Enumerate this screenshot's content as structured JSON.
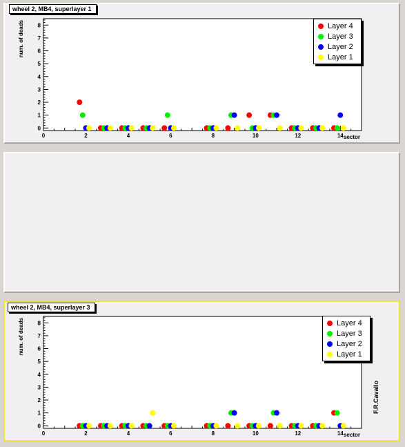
{
  "author": "F.R.Cavallo",
  "colors": {
    "Layer 4": "#ff0000",
    "Layer 3": "#00ee00",
    "Layer 2": "#0000ff",
    "Layer 1": "#ffff00"
  },
  "chart_data": [
    {
      "type": "scatter",
      "title": "wheel 2, MB4, superlayer 1",
      "xlabel": "sector",
      "ylabel": "num. of deads",
      "xlim": [
        0,
        15
      ],
      "ylim": [
        -0.2,
        8.5
      ],
      "xticks": [
        0,
        2,
        4,
        6,
        8,
        10,
        12,
        14
      ],
      "yticks": [
        0,
        1,
        2,
        3,
        4,
        5,
        6,
        7,
        8
      ],
      "legend_position": "top-right",
      "series": [
        {
          "name": "Layer 4",
          "x": [
            1,
            2,
            3,
            4,
            5,
            7,
            8,
            9,
            10,
            11,
            12,
            13
          ],
          "y": [
            2,
            0,
            0,
            0,
            0,
            0,
            0,
            1,
            1,
            0,
            0,
            0
          ]
        },
        {
          "name": "Layer 3",
          "x": [
            1,
            2,
            3,
            4,
            5,
            7,
            8,
            9,
            10,
            11,
            12,
            13
          ],
          "y": [
            1,
            0,
            0,
            0,
            1,
            0,
            1,
            0,
            1,
            0,
            0,
            0
          ]
        },
        {
          "name": "Layer 2",
          "x": [
            1,
            2,
            3,
            4,
            5,
            7,
            8,
            9,
            10,
            11,
            12,
            13
          ],
          "y": [
            0,
            0,
            0,
            0,
            0,
            0,
            1,
            0,
            1,
            0,
            0,
            1
          ]
        },
        {
          "name": "Layer 1",
          "x": [
            1,
            2,
            3,
            4,
            5,
            7,
            8,
            9,
            10,
            11,
            12,
            13
          ],
          "y": [
            0,
            0,
            0,
            0,
            0,
            0,
            0,
            0,
            0,
            0,
            0,
            0
          ]
        }
      ]
    },
    {
      "type": "scatter",
      "title": "wheel 2, MB4, superlayer 3",
      "xlabel": "sector",
      "ylabel": "num. of deads",
      "xlim": [
        0,
        15
      ],
      "ylim": [
        -0.2,
        8.5
      ],
      "xticks": [
        0,
        2,
        4,
        6,
        8,
        10,
        12,
        14
      ],
      "yticks": [
        0,
        1,
        2,
        3,
        4,
        5,
        6,
        7,
        8
      ],
      "legend_position": "top-right",
      "series": [
        {
          "name": "Layer 4",
          "x": [
            1,
            2,
            3,
            4,
            5,
            7,
            8,
            9,
            10,
            11,
            12,
            13
          ],
          "y": [
            0,
            0,
            0,
            0,
            0,
            0,
            0,
            0,
            0,
            0,
            0,
            1
          ]
        },
        {
          "name": "Layer 3",
          "x": [
            1,
            2,
            3,
            4,
            5,
            7,
            8,
            9,
            10,
            11,
            12,
            13
          ],
          "y": [
            0,
            0,
            0,
            0,
            0,
            0,
            1,
            0,
            1,
            0,
            0,
            1
          ]
        },
        {
          "name": "Layer 2",
          "x": [
            1,
            2,
            3,
            4,
            5,
            7,
            8,
            9,
            10,
            11,
            12,
            13
          ],
          "y": [
            0,
            0,
            0,
            0,
            0,
            0,
            1,
            0,
            1,
            0,
            0,
            0
          ]
        },
        {
          "name": "Layer 1",
          "x": [
            1,
            2,
            3,
            4,
            5,
            7,
            8,
            9,
            10,
            11,
            12,
            13
          ],
          "y": [
            0,
            0,
            0,
            1,
            0,
            0,
            0,
            0,
            0,
            0,
            0,
            0
          ]
        }
      ]
    }
  ]
}
